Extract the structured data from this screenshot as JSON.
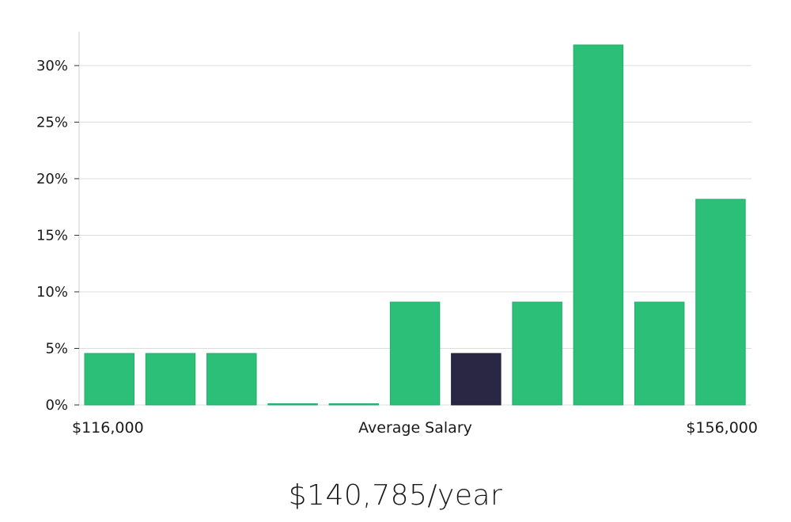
{
  "chart_data": {
    "type": "bar",
    "categories": [
      "1",
      "2",
      "3",
      "4",
      "5",
      "6",
      "7",
      "8",
      "9",
      "10",
      "11"
    ],
    "values": [
      4.55,
      4.55,
      4.55,
      0,
      0,
      9.09,
      4.55,
      9.09,
      31.82,
      9.09,
      18.18
    ],
    "highlight_index": 6,
    "ylim": [
      0,
      33
    ],
    "yticks": [
      0,
      5,
      10,
      15,
      20,
      25,
      30
    ],
    "ytick_labels": [
      "0%",
      "5%",
      "10%",
      "15%",
      "20%",
      "25%",
      "30%"
    ],
    "x_min_label": "$116,000",
    "x_max_label": "$156,000",
    "xlabel": "Average Salary",
    "grid": true,
    "colors": {
      "bar": "#2bbf77",
      "bar_edge": "#22ad68",
      "highlight": "#2a2745",
      "grid": "#dcdcdc",
      "axis": "#cfcfcf"
    }
  },
  "headline": "$140,785/year"
}
